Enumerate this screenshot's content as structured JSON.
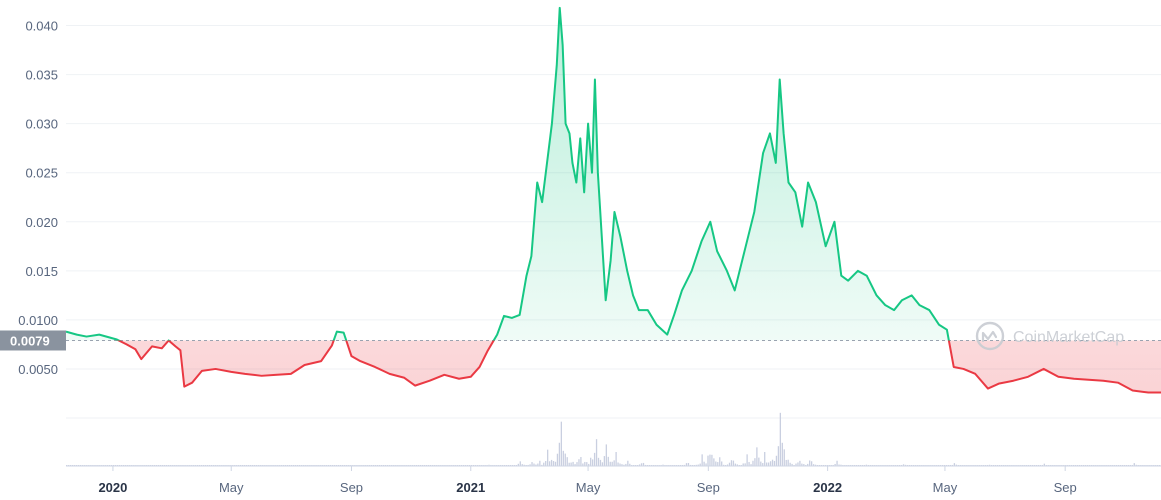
{
  "chart_data": {
    "type": "area",
    "yticks": [
      {
        "value": 0.005,
        "label": "0.0050"
      },
      {
        "value": 0.01,
        "label": "0.0100"
      },
      {
        "value": 0.015,
        "label": "0.015"
      },
      {
        "value": 0.02,
        "label": "0.020"
      },
      {
        "value": 0.025,
        "label": "0.025"
      },
      {
        "value": 0.03,
        "label": "0.030"
      },
      {
        "value": 0.035,
        "label": "0.035"
      },
      {
        "value": 0.04,
        "label": "0.040"
      }
    ],
    "ylim": [
      0,
      0.0426
    ],
    "xlim": [
      "2019-11-14",
      "2022-12-08"
    ],
    "xticks": [
      {
        "date": "2020-01-01",
        "label": "2020",
        "year": true
      },
      {
        "date": "2020-05-01",
        "label": "May",
        "year": false
      },
      {
        "date": "2020-09-01",
        "label": "Sep",
        "year": false
      },
      {
        "date": "2021-01-01",
        "label": "2021",
        "year": true
      },
      {
        "date": "2021-05-01",
        "label": "May",
        "year": false
      },
      {
        "date": "2021-09-01",
        "label": "Sep",
        "year": false
      },
      {
        "date": "2022-01-01",
        "label": "2022",
        "year": true
      },
      {
        "date": "2022-05-01",
        "label": "May",
        "year": false
      },
      {
        "date": "2022-09-01",
        "label": "Sep",
        "year": false
      }
    ],
    "reference": {
      "value": 0.0079,
      "label": "0.0079"
    },
    "colors": {
      "above": "#16c784",
      "below": "#ea3943",
      "reference_label_bg": "#8a939f",
      "volume": "#c9cfe0"
    },
    "grid": true,
    "watermark": "CoinMarketCap",
    "price": [
      [
        "2019-11-14",
        0.0088
      ],
      [
        "2019-11-25",
        0.0085
      ],
      [
        "2019-12-05",
        0.0083
      ],
      [
        "2019-12-18",
        0.0085
      ],
      [
        "2020-01-05",
        0.008
      ],
      [
        "2020-01-15",
        0.0075
      ],
      [
        "2020-01-24",
        0.007
      ],
      [
        "2020-01-30",
        0.006
      ],
      [
        "2020-02-10",
        0.0073
      ],
      [
        "2020-02-20",
        0.0071
      ],
      [
        "2020-02-27",
        0.0079
      ],
      [
        "2020-03-05",
        0.0073
      ],
      [
        "2020-03-10",
        0.0069
      ],
      [
        "2020-03-14",
        0.0032
      ],
      [
        "2020-03-22",
        0.0036
      ],
      [
        "2020-04-01",
        0.0048
      ],
      [
        "2020-04-15",
        0.005
      ],
      [
        "2020-05-01",
        0.0047
      ],
      [
        "2020-05-15",
        0.0045
      ],
      [
        "2020-06-01",
        0.0043
      ],
      [
        "2020-06-15",
        0.0044
      ],
      [
        "2020-07-01",
        0.0045
      ],
      [
        "2020-07-15",
        0.0054
      ],
      [
        "2020-08-01",
        0.0058
      ],
      [
        "2020-08-12",
        0.0074
      ],
      [
        "2020-08-17",
        0.0088
      ],
      [
        "2020-08-24",
        0.0087
      ],
      [
        "2020-09-01",
        0.0063
      ],
      [
        "2020-09-10",
        0.0058
      ],
      [
        "2020-09-25",
        0.0052
      ],
      [
        "2020-10-10",
        0.0045
      ],
      [
        "2020-10-25",
        0.0041
      ],
      [
        "2020-11-05",
        0.0033
      ],
      [
        "2020-11-20",
        0.0038
      ],
      [
        "2020-12-05",
        0.0044
      ],
      [
        "2020-12-20",
        0.004
      ],
      [
        "2021-01-01",
        0.0042
      ],
      [
        "2021-01-10",
        0.0052
      ],
      [
        "2021-01-18",
        0.0068
      ],
      [
        "2021-01-28",
        0.0085
      ],
      [
        "2021-02-04",
        0.0104
      ],
      [
        "2021-02-12",
        0.0102
      ],
      [
        "2021-02-20",
        0.0105
      ],
      [
        "2021-02-27",
        0.0145
      ],
      [
        "2021-03-04",
        0.0165
      ],
      [
        "2021-03-10",
        0.024
      ],
      [
        "2021-03-15",
        0.022
      ],
      [
        "2021-03-20",
        0.026
      ],
      [
        "2021-03-25",
        0.03
      ],
      [
        "2021-03-30",
        0.036
      ],
      [
        "2021-04-02",
        0.0418
      ],
      [
        "2021-04-05",
        0.038
      ],
      [
        "2021-04-08",
        0.03
      ],
      [
        "2021-04-12",
        0.029
      ],
      [
        "2021-04-15",
        0.026
      ],
      [
        "2021-04-19",
        0.024
      ],
      [
        "2021-04-23",
        0.0285
      ],
      [
        "2021-04-27",
        0.023
      ],
      [
        "2021-05-01",
        0.03
      ],
      [
        "2021-05-05",
        0.025
      ],
      [
        "2021-05-08",
        0.0345
      ],
      [
        "2021-05-11",
        0.025
      ],
      [
        "2021-05-15",
        0.0185
      ],
      [
        "2021-05-19",
        0.012
      ],
      [
        "2021-05-24",
        0.016
      ],
      [
        "2021-05-28",
        0.021
      ],
      [
        "2021-06-03",
        0.0185
      ],
      [
        "2021-06-10",
        0.015
      ],
      [
        "2021-06-16",
        0.0125
      ],
      [
        "2021-06-22",
        0.011
      ],
      [
        "2021-07-01",
        0.011
      ],
      [
        "2021-07-10",
        0.0095
      ],
      [
        "2021-07-21",
        0.0085
      ],
      [
        "2021-07-28",
        0.0105
      ],
      [
        "2021-08-05",
        0.013
      ],
      [
        "2021-08-15",
        0.015
      ],
      [
        "2021-08-25",
        0.018
      ],
      [
        "2021-09-03",
        0.02
      ],
      [
        "2021-09-10",
        0.017
      ],
      [
        "2021-09-20",
        0.015
      ],
      [
        "2021-09-28",
        0.013
      ],
      [
        "2021-10-08",
        0.017
      ],
      [
        "2021-10-18",
        0.021
      ],
      [
        "2021-10-27",
        0.027
      ],
      [
        "2021-11-03",
        0.029
      ],
      [
        "2021-11-09",
        0.026
      ],
      [
        "2021-11-13",
        0.0345
      ],
      [
        "2021-11-17",
        0.029
      ],
      [
        "2021-11-22",
        0.024
      ],
      [
        "2021-11-29",
        0.023
      ],
      [
        "2021-12-06",
        0.0195
      ],
      [
        "2021-12-12",
        0.024
      ],
      [
        "2021-12-20",
        0.022
      ],
      [
        "2021-12-30",
        0.0175
      ],
      [
        "2022-01-08",
        0.02
      ],
      [
        "2022-01-15",
        0.0145
      ],
      [
        "2022-01-22",
        0.014
      ],
      [
        "2022-02-01",
        0.015
      ],
      [
        "2022-02-10",
        0.0145
      ],
      [
        "2022-02-20",
        0.0125
      ],
      [
        "2022-03-01",
        0.0115
      ],
      [
        "2022-03-10",
        0.011
      ],
      [
        "2022-03-18",
        0.012
      ],
      [
        "2022-03-28",
        0.0125
      ],
      [
        "2022-04-05",
        0.0115
      ],
      [
        "2022-04-15",
        0.011
      ],
      [
        "2022-04-25",
        0.0095
      ],
      [
        "2022-05-03",
        0.009
      ],
      [
        "2022-05-10",
        0.0052
      ],
      [
        "2022-05-20",
        0.005
      ],
      [
        "2022-06-01",
        0.0045
      ],
      [
        "2022-06-14",
        0.003
      ],
      [
        "2022-06-25",
        0.0035
      ],
      [
        "2022-07-10",
        0.0038
      ],
      [
        "2022-07-25",
        0.0042
      ],
      [
        "2022-08-10",
        0.005
      ],
      [
        "2022-08-25",
        0.0042
      ],
      [
        "2022-09-10",
        0.004
      ],
      [
        "2022-09-25",
        0.0039
      ],
      [
        "2022-10-10",
        0.0038
      ],
      [
        "2022-10-25",
        0.0036
      ],
      [
        "2022-11-09",
        0.0028
      ],
      [
        "2022-11-25",
        0.0026
      ],
      [
        "2022-12-08",
        0.0026
      ]
    ],
    "volume": [
      [
        "2020-01-15",
        0.1
      ],
      [
        "2020-05-01",
        0.08
      ],
      [
        "2020-08-20",
        0.15
      ],
      [
        "2021-01-20",
        0.3
      ],
      [
        "2021-02-20",
        0.8
      ],
      [
        "2021-03-05",
        1.4
      ],
      [
        "2021-03-12",
        0.9
      ],
      [
        "2021-03-20",
        2.8
      ],
      [
        "2021-03-25",
        1.6
      ],
      [
        "2021-03-31",
        3.5
      ],
      [
        "2021-04-03",
        7.6
      ],
      [
        "2021-04-08",
        2.2
      ],
      [
        "2021-04-14",
        1.8
      ],
      [
        "2021-04-22",
        2.0
      ],
      [
        "2021-04-28",
        1.5
      ],
      [
        "2021-05-04",
        1.9
      ],
      [
        "2021-05-09",
        4.6
      ],
      [
        "2021-05-14",
        1.8
      ],
      [
        "2021-05-19",
        3.7
      ],
      [
        "2021-05-24",
        1.6
      ],
      [
        "2021-05-29",
        2.4
      ],
      [
        "2021-06-10",
        0.9
      ],
      [
        "2021-06-25",
        0.7
      ],
      [
        "2021-07-15",
        0.5
      ],
      [
        "2021-08-10",
        0.9
      ],
      [
        "2021-08-25",
        2.0
      ],
      [
        "2021-09-03",
        5.8
      ],
      [
        "2021-09-12",
        1.5
      ],
      [
        "2021-09-25",
        1.4
      ],
      [
        "2021-10-10",
        2.0
      ],
      [
        "2021-10-20",
        3.2
      ],
      [
        "2021-10-28",
        2.4
      ],
      [
        "2021-11-04",
        2.6
      ],
      [
        "2021-11-14",
        12.0
      ],
      [
        "2021-11-20",
        3.0
      ],
      [
        "2021-12-02",
        1.8
      ],
      [
        "2021-12-14",
        1.3
      ],
      [
        "2022-01-10",
        0.9
      ],
      [
        "2022-02-10",
        0.5
      ],
      [
        "2022-03-20",
        0.4
      ],
      [
        "2022-05-11",
        0.7
      ],
      [
        "2022-06-14",
        0.5
      ],
      [
        "2022-08-10",
        0.4
      ],
      [
        "2022-11-10",
        0.5
      ]
    ]
  }
}
